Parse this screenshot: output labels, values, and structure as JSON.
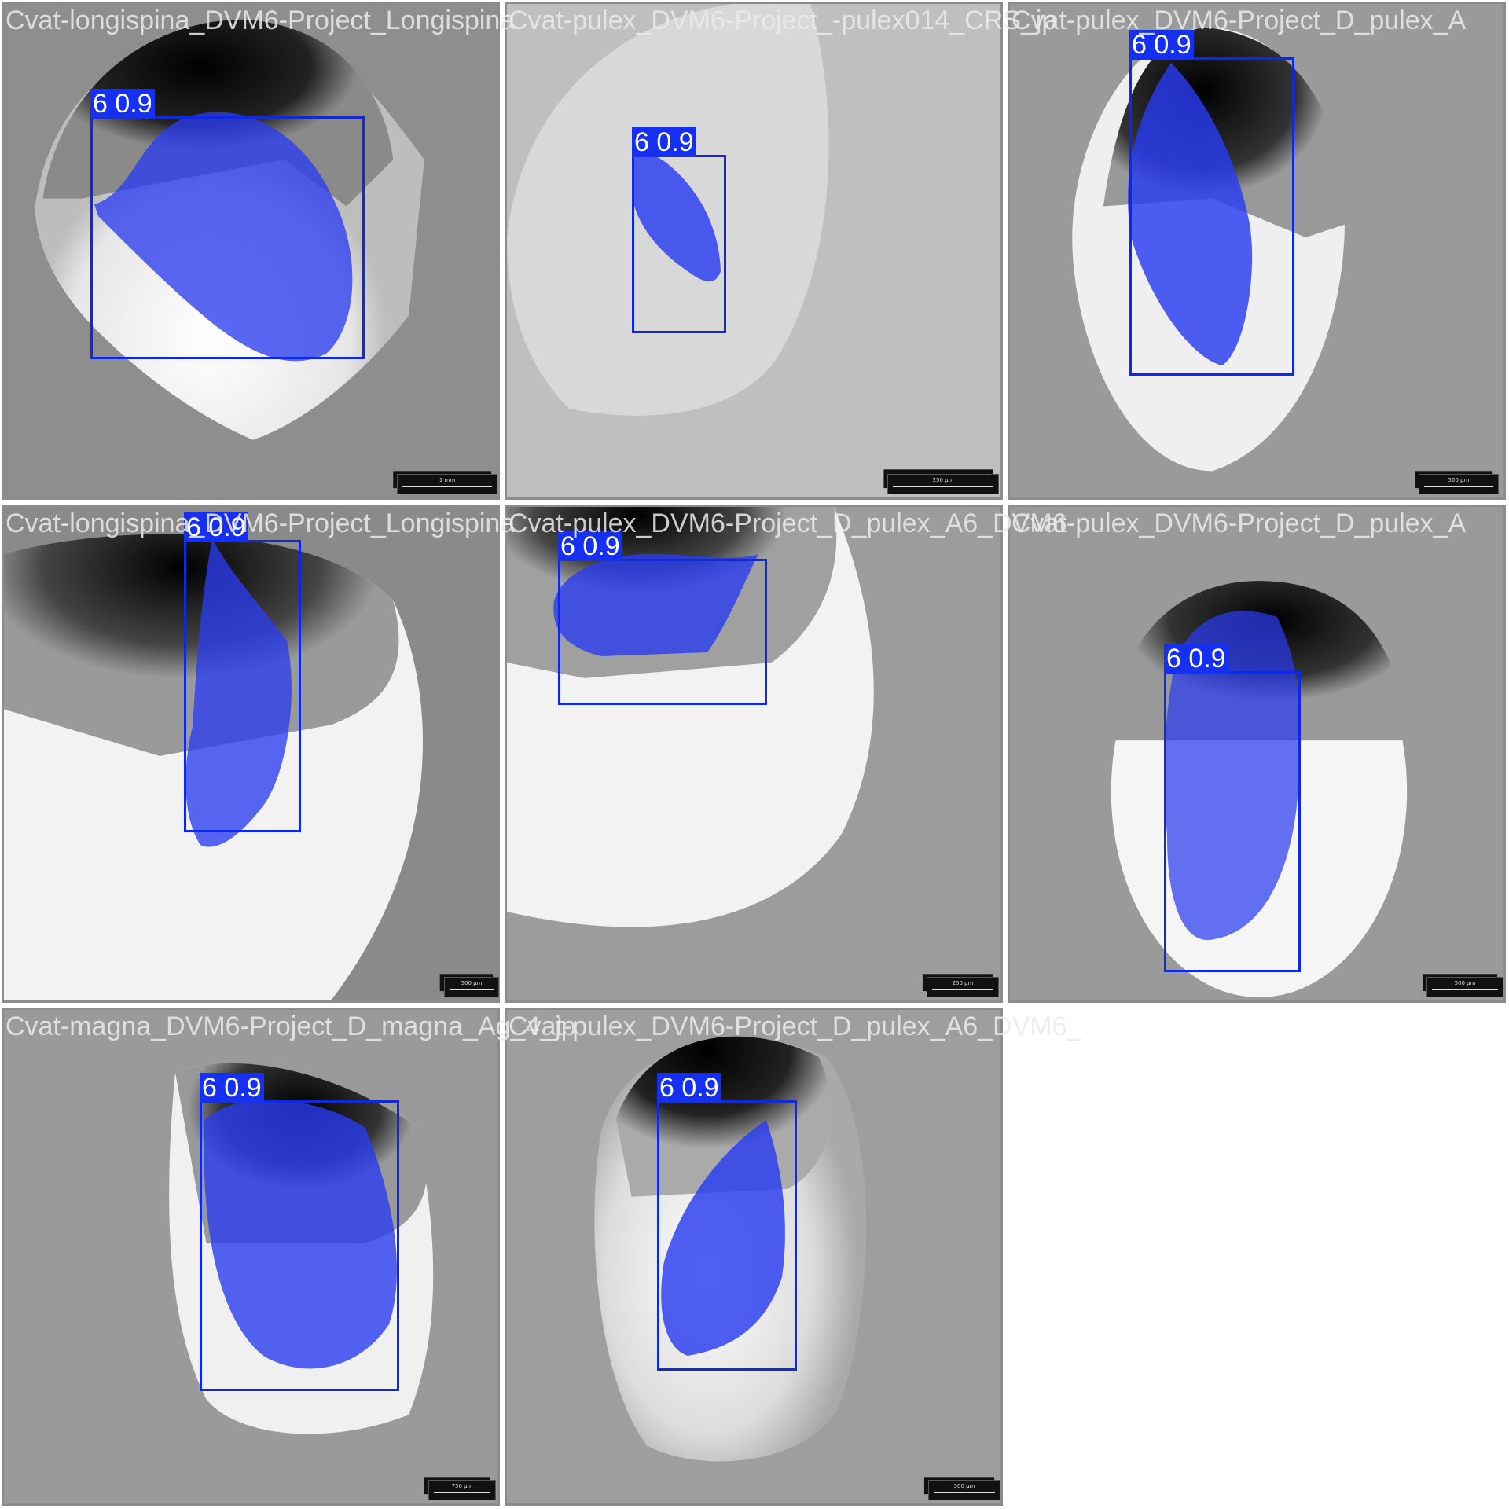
{
  "tiles": [
    {
      "title": "Cvat-longispina_DVM6-Project_Longispina",
      "label": "6 0.9",
      "scale": "1 mm"
    },
    {
      "title": "Cvat-pulex_DVM6-Project_-pulex014_CRS_jp",
      "label": "6 0.9",
      "scale": "250 µm"
    },
    {
      "title": "Cvat-pulex_DVM6-Project_D_pulex_A",
      "label": "6 0.9",
      "scale": "500 µm"
    },
    {
      "title": "Cvat-longispina_DVM6-Project_Longispina",
      "label": "6 0.9",
      "scale": "500 µm"
    },
    {
      "title": "Cvat-pulex_DVM6-Project_D_pulex_A6_DVM6",
      "label": "6 0.9",
      "scale": "250 µm"
    },
    {
      "title": "Cvat-pulex_DVM6-Project_D_pulex_A",
      "label": "6 0.9",
      "scale": "500 µm"
    },
    {
      "title": "Cvat-magna_DVM6-Project_D_magna_Ag_4_jp",
      "label": "6 0.9",
      "scale": "750 µm"
    },
    {
      "title": "Cvat-pulex_DVM6-Project_D_pulex_A6_DVM6_",
      "label": "6 0.9",
      "scale": "500 µm"
    }
  ],
  "colors": {
    "mask": "#2a3cf0",
    "box": "#0d28e8",
    "tag": "#1530f0"
  }
}
